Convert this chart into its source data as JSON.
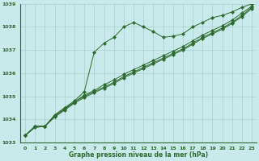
{
  "x": [
    0,
    1,
    2,
    3,
    4,
    5,
    6,
    7,
    8,
    9,
    10,
    11,
    12,
    13,
    14,
    15,
    16,
    17,
    18,
    19,
    20,
    21,
    22,
    23
  ],
  "line1": [
    1033.3,
    1033.7,
    1033.7,
    1034.2,
    1034.5,
    1034.8,
    1035.2,
    1036.9,
    1037.3,
    1037.55,
    1038.0,
    1038.2,
    1038.0,
    1037.8,
    1037.55,
    1037.6,
    1037.7,
    1038.0,
    1038.2,
    1038.4,
    1038.5,
    1038.65,
    1038.85,
    1039.0
  ],
  "line2": [
    1033.3,
    1033.7,
    1033.7,
    1034.15,
    1034.45,
    1034.75,
    1035.05,
    1035.25,
    1035.5,
    1035.7,
    1035.95,
    1036.15,
    1036.35,
    1036.55,
    1036.75,
    1036.95,
    1037.15,
    1037.4,
    1037.65,
    1037.85,
    1038.05,
    1038.3,
    1038.6,
    1038.9
  ],
  "line3": [
    1033.3,
    1033.7,
    1033.7,
    1034.15,
    1034.45,
    1034.75,
    1035.0,
    1035.2,
    1035.4,
    1035.6,
    1035.85,
    1036.05,
    1036.25,
    1036.45,
    1036.65,
    1036.85,
    1037.05,
    1037.3,
    1037.55,
    1037.75,
    1037.95,
    1038.2,
    1038.5,
    1038.85
  ],
  "line4": [
    1033.3,
    1033.65,
    1033.7,
    1034.1,
    1034.4,
    1034.7,
    1034.95,
    1035.15,
    1035.35,
    1035.55,
    1035.8,
    1036.0,
    1036.2,
    1036.4,
    1036.6,
    1036.8,
    1037.0,
    1037.25,
    1037.5,
    1037.7,
    1037.9,
    1038.15,
    1038.45,
    1038.8
  ],
  "line_color": "#2d6a2d",
  "bg_color": "#c8eaea",
  "grid_color": "#a8d0d0",
  "ylim": [
    1033,
    1039
  ],
  "yticks": [
    1033,
    1034,
    1035,
    1036,
    1037,
    1038,
    1039
  ],
  "xticks": [
    0,
    1,
    2,
    3,
    4,
    5,
    6,
    7,
    8,
    9,
    10,
    11,
    12,
    13,
    14,
    15,
    16,
    17,
    18,
    19,
    20,
    21,
    22,
    23
  ],
  "xlabel": "Graphe pression niveau de la mer (hPa)",
  "tick_fontsize": 4.5,
  "xlabel_fontsize": 5.5,
  "markersize": 2.2,
  "linewidth": 0.7
}
